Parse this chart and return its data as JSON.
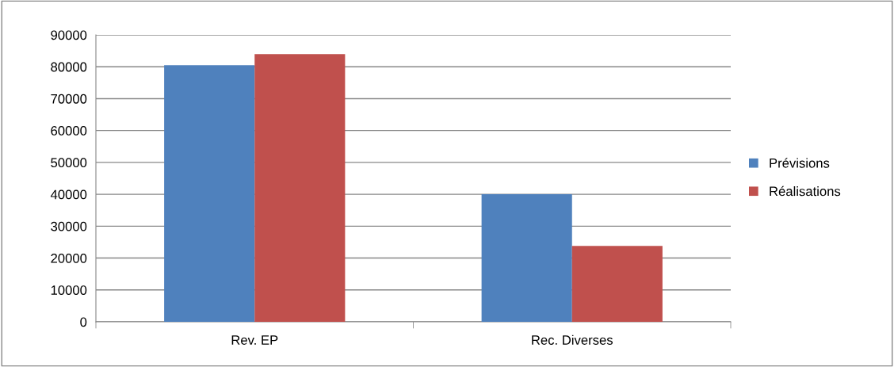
{
  "chart_data": {
    "type": "bar",
    "categories": [
      "Rev. EP",
      "Rec. Diverses"
    ],
    "series": [
      {
        "name": "Prévisions",
        "color": "#4f81bd",
        "values": [
          80500,
          40000
        ]
      },
      {
        "name": "Réalisations",
        "color": "#c0504d",
        "values": [
          84000,
          23800
        ]
      }
    ],
    "ylim": [
      0,
      90000
    ],
    "yticks": [
      0,
      10000,
      20000,
      30000,
      40000,
      50000,
      60000,
      70000,
      80000,
      90000
    ],
    "grid": "y",
    "legend": "right"
  }
}
